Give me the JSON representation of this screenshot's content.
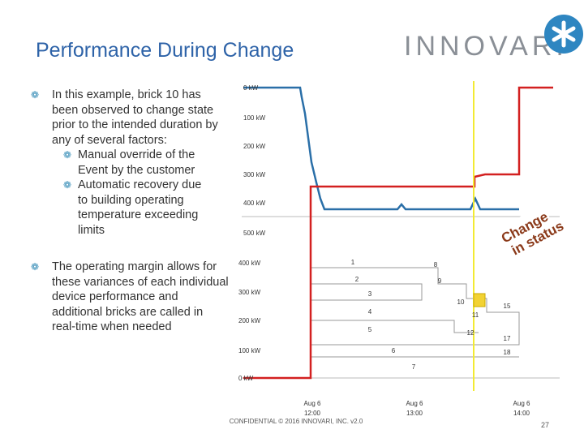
{
  "title": "Performance During Change",
  "logo": "INNOVARI",
  "bullets": [
    {
      "text": "In this example, brick 10 has been observed to change state prior to the intended duration by any of several factors:",
      "items": [
        "Manual override of the Event by the customer",
        "Automatic recovery due to building operating temperature exceeding limits"
      ]
    },
    {
      "text": "The operating margin allows for these variances of each individual device performance and additional bricks are called in real-time when needed",
      "items": []
    }
  ],
  "upper_axis": [
    "0 kW",
    "100 kW",
    "200 kW",
    "300 kW",
    "400 kW",
    "500 kW"
  ],
  "lower_axis": [
    "400 kW",
    "300 kW",
    "200 kW",
    "100 kW",
    "0 kW"
  ],
  "bricks": [
    "1",
    "2",
    "3",
    "4",
    "5",
    "6",
    "7",
    "8",
    "9",
    "10",
    "11",
    "12",
    "15",
    "17",
    "18"
  ],
  "callout": [
    "Change",
    "in status"
  ],
  "x_labels": [
    [
      "Aug 6",
      "12:00"
    ],
    [
      "Aug 6",
      "13:00"
    ],
    [
      "Aug 6",
      "14:00"
    ]
  ],
  "footer": "CONFIDENTIAL © 2016 INNOVARI, INC. v2.0",
  "page_number": "27"
}
